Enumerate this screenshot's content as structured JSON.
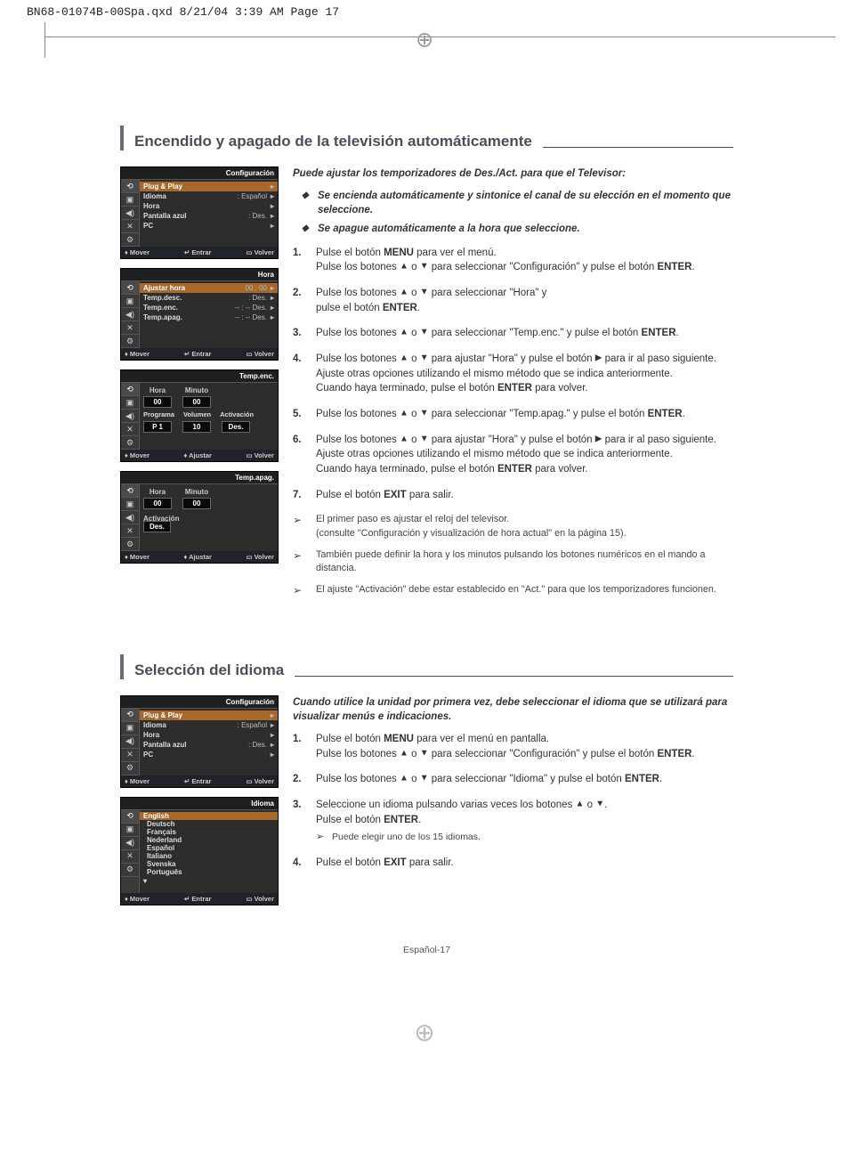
{
  "header_line": "BN68-01074B-00Spa.qxd  8/21/04  3:39 AM  Page 17",
  "footer": "Español-17",
  "sec1": {
    "title": "Encendido y apagado de la televisión automáticamente",
    "intro": "Puede ajustar los temporizadores de Des./Act. para que el Televisor:",
    "bullets": [
      "Se encienda automáticamente y sintonice el canal de su elección en el momento que seleccione.",
      "Se apague automáticamente a la hora que seleccione."
    ],
    "steps": [
      "Pulse el botón <b>MENU</b> para ver el menú.<br>Pulse los botones <span class=\"arr\">▲</span> o <span class=\"arr\">▼</span> para seleccionar \"Configuración\" y pulse el botón <b>ENTER</b>.",
      "Pulse los botones <span class=\"arr\">▲</span> o <span class=\"arr\">▼</span> para seleccionar \"Hora\" y<br>pulse el botón <b>ENTER</b>.",
      "Pulse los botones <span class=\"arr\">▲</span> o <span class=\"arr\">▼</span> para seleccionar \"Temp.enc.\" y pulse el botón <b>ENTER</b>.",
      "Pulse los botones <span class=\"arr\">▲</span> o <span class=\"arr\">▼</span> para ajustar \"Hora\" y pulse el botón <span class=\"arr\">▶</span> para ir al paso siguiente. Ajuste otras opciones utilizando el mismo método que se indica anteriormente.<br>Cuando haya terminado, pulse el botón <b>ENTER</b> para volver.",
      "Pulse los botones <span class=\"arr\">▲</span> o <span class=\"arr\">▼</span> para seleccionar \"Temp.apag.\" y pulse el botón <b>ENTER</b>.",
      "Pulse los botones <span class=\"arr\">▲</span> o <span class=\"arr\">▼</span> para ajustar \"Hora\" y pulse el botón <span class=\"arr\">▶</span> para ir al paso siguiente. Ajuste otras opciones utilizando el mismo método que se indica anteriormente.<br>Cuando haya terminado, pulse el botón <b>ENTER</b> para volver.",
      "Pulse el botón <b>EXIT</b> para salir."
    ],
    "notes": [
      "El primer paso es ajustar el reloj del televisor.<br>(consulte \"Configuración y visualización de hora actual\" en la página 15).",
      "También puede definir la hora y los minutos pulsando los botones numéricos en el mando a distancia.",
      "El ajuste \"Activación\" debe estar establecido en \"Act.\" para que los temporizadores funcionen."
    ]
  },
  "sec2": {
    "title": "Selección del idioma",
    "intro": "Cuando utilice la unidad por primera vez, debe seleccionar el idioma que se utilizará para visualizar menús e indicaciones.",
    "steps": [
      "Pulse el botón <b>MENU</b> para ver el menú en pantalla.<br>Pulse los botones <span class=\"arr\">▲</span> o <span class=\"arr\">▼</span> para seleccionar \"Configuración\" y pulse el botón <b>ENTER</b>.",
      "Pulse los botones <span class=\"arr\">▲</span> o <span class=\"arr\">▼</span> para seleccionar \"Idioma\" y pulse el botón <b>ENTER</b>.",
      "Seleccione un idioma pulsando varias veces los botones <span class=\"arr\">▲</span> o <span class=\"arr\">▼</span>.<br>Pulse el botón <b>ENTER</b>.<div class=\"subnote\">Puede elegir uno de los 15 idiomas.</div>",
      "Pulse el botón <b>EXIT</b> para salir."
    ]
  },
  "osd": {
    "tabs": [
      "⟲",
      "▣",
      "◀)",
      "✕",
      "⚙"
    ],
    "foot_move": "♦ Mover",
    "foot_enter": "↵ Entrar",
    "foot_adjust": "♦ Ajustar",
    "foot_back": "▭ Volver",
    "config": {
      "title": "Configuración",
      "rows": [
        {
          "lbl": "Plug & Play",
          "val": "",
          "active": true
        },
        {
          "lbl": "Idioma",
          "val": ": Español"
        },
        {
          "lbl": "Hora",
          "val": ""
        },
        {
          "lbl": "Pantalla azul",
          "val": ": Des."
        },
        {
          "lbl": "PC",
          "val": ""
        }
      ]
    },
    "hora": {
      "title": "Hora",
      "rows": [
        {
          "lbl": "Ajustar hora",
          "val": "00 : 00",
          "active": true
        },
        {
          "lbl": "Temp.desc.",
          "val": ":             Des."
        },
        {
          "lbl": "Temp.enc.",
          "val": "-- : --    Des."
        },
        {
          "lbl": "Temp.apag.",
          "val": "-- : --    Des."
        }
      ]
    },
    "tempenc": {
      "title": "Temp.enc.",
      "cols1": [
        {
          "hdr": "Hora",
          "val": "00"
        },
        {
          "hdr": "Minuto",
          "val": "00"
        }
      ],
      "cols2_labels": [
        "Programa",
        "Volumen",
        "Activación"
      ],
      "cols2_vals": [
        "P    1",
        "10",
        "Des."
      ]
    },
    "tempapag": {
      "title": "Temp.apag.",
      "cols1": [
        {
          "hdr": "Hora",
          "val": "00"
        },
        {
          "hdr": "Minuto",
          "val": "00"
        }
      ],
      "act_label": "Activación",
      "act_val": "Des."
    },
    "idioma": {
      "title": "Idioma",
      "langs": [
        "English",
        "Deutsch",
        "Français",
        "Nederland",
        "Español",
        "Italiano",
        "Svenska",
        "Português"
      ]
    }
  }
}
